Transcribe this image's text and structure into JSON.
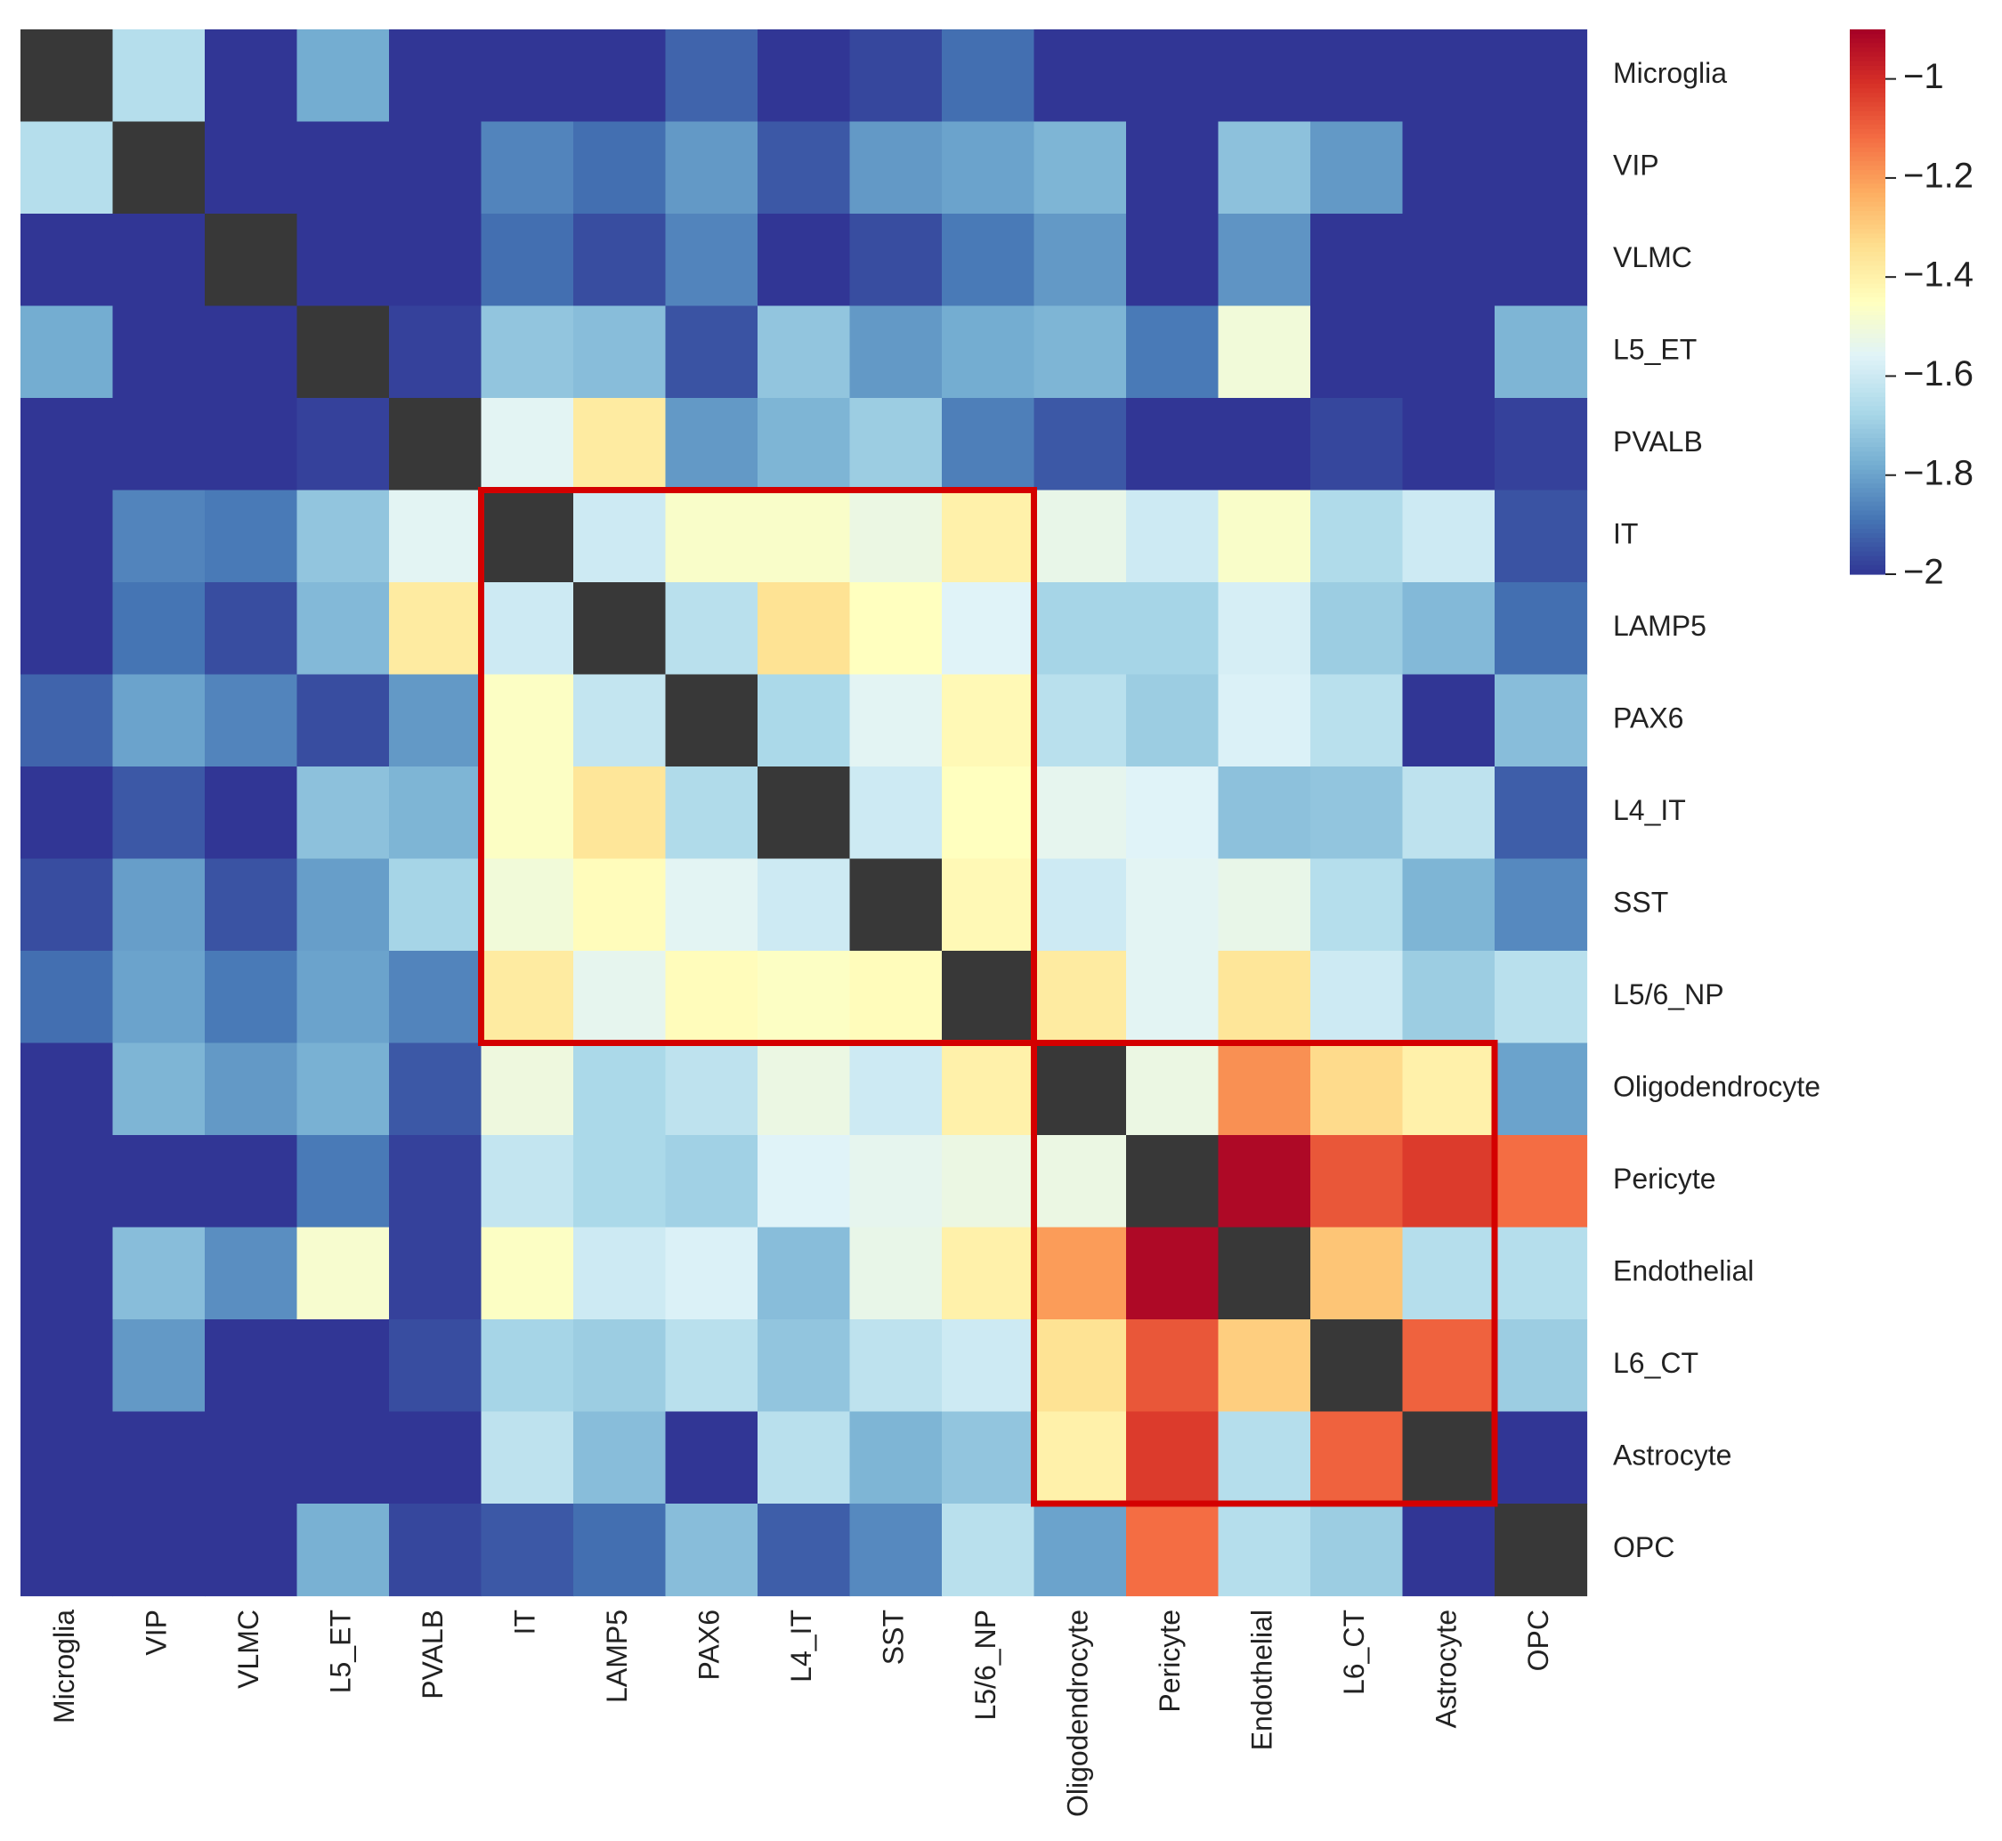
{
  "chart_data": {
    "type": "heatmap",
    "title": "",
    "xlabel": "",
    "ylabel": "",
    "rows": [
      "Microglia",
      "VIP",
      "VLMC",
      "L5_ET",
      "PVALB",
      "IT",
      "LAMP5",
      "PAX6",
      "L4_IT",
      "SST",
      "L5/6_NP",
      "Oligodendrocyte",
      "Pericyte",
      "Endothelial",
      "L6_CT",
      "Astrocyte",
      "OPC"
    ],
    "columns": [
      "Microglia",
      "VIP",
      "VLMC",
      "L5_ET",
      "PVALB",
      "IT",
      "LAMP5",
      "PAX6",
      "L4_IT",
      "SST",
      "L5/6_NP",
      "Oligodendrocyte",
      "Pericyte",
      "Endothelial",
      "L6_CT",
      "Astrocyte",
      "OPC"
    ],
    "values": [
      [
        null,
        -1.65,
        -2,
        -1.78,
        -2,
        -2,
        -2,
        -1.92,
        -2,
        -1.97,
        -1.9,
        -2,
        -2,
        -2,
        -2,
        -2,
        -2
      ],
      [
        -1.65,
        null,
        -2,
        -2,
        -2,
        -1.86,
        -1.9,
        -1.82,
        -1.94,
        -1.82,
        -1.8,
        -1.76,
        -2,
        -1.73,
        -1.82,
        -2,
        -2
      ],
      [
        -2,
        -2,
        null,
        -2,
        -2,
        -1.9,
        -1.96,
        -1.86,
        -2,
        -1.96,
        -1.88,
        -1.82,
        -2,
        -1.83,
        -2,
        -2,
        -2
      ],
      [
        -1.78,
        -2,
        -2,
        null,
        -1.98,
        -1.72,
        -1.74,
        -1.95,
        -1.72,
        -1.82,
        -1.78,
        -1.76,
        -1.88,
        -1.5,
        -2,
        -2,
        -1.76
      ],
      [
        -2,
        -2,
        -2,
        -1.98,
        null,
        -1.55,
        -1.38,
        -1.82,
        -1.76,
        -1.7,
        -1.87,
        -1.94,
        -2,
        -2,
        -1.97,
        -2,
        -1.98
      ],
      [
        -2,
        -1.86,
        -1.88,
        -1.72,
        -1.55,
        null,
        -1.6,
        -1.47,
        -1.47,
        -1.52,
        -1.4,
        -1.53,
        -1.6,
        -1.47,
        -1.66,
        -1.6,
        -1.95
      ],
      [
        -2,
        -1.89,
        -1.96,
        -1.75,
        -1.38,
        -1.6,
        null,
        -1.64,
        -1.35,
        -1.45,
        -1.56,
        -1.68,
        -1.68,
        -1.58,
        -1.7,
        -1.75,
        -1.9
      ],
      [
        -1.92,
        -1.8,
        -1.86,
        -1.96,
        -1.82,
        -1.46,
        -1.62,
        null,
        -1.67,
        -1.55,
        -1.43,
        -1.64,
        -1.7,
        -1.57,
        -1.64,
        -2,
        -1.74
      ],
      [
        -2,
        -1.94,
        -2,
        -1.73,
        -1.76,
        -1.46,
        -1.36,
        -1.66,
        null,
        -1.6,
        -1.45,
        -1.54,
        -1.56,
        -1.73,
        -1.72,
        -1.63,
        -1.93
      ],
      [
        -1.96,
        -1.81,
        -1.95,
        -1.81,
        -1.68,
        -1.5,
        -1.44,
        -1.55,
        -1.6,
        null,
        -1.43,
        -1.6,
        -1.55,
        -1.53,
        -1.65,
        -1.76,
        -1.85
      ],
      [
        -1.9,
        -1.8,
        -1.88,
        -1.8,
        -1.86,
        -1.38,
        -1.54,
        -1.44,
        -1.46,
        -1.44,
        null,
        -1.38,
        -1.55,
        -1.36,
        -1.6,
        -1.7,
        -1.64
      ],
      [
        -2,
        -1.76,
        -1.82,
        -1.77,
        -1.94,
        -1.51,
        -1.67,
        -1.63,
        -1.52,
        -1.6,
        -1.4,
        null,
        -1.52,
        -1.18,
        -1.33,
        -1.4,
        -1.8
      ],
      [
        -2,
        -2,
        -2,
        -1.88,
        -1.98,
        -1.62,
        -1.67,
        -1.69,
        -1.56,
        -1.54,
        -1.52,
        -1.52,
        null,
        -0.92,
        -1.08,
        -1.03,
        -1.12
      ],
      [
        -2,
        -1.74,
        -1.84,
        -1.48,
        -1.98,
        -1.46,
        -1.6,
        -1.57,
        -1.74,
        -1.53,
        -1.4,
        -1.2,
        -0.92,
        null,
        -1.28,
        -1.65,
        -1.65
      ],
      [
        -2,
        -1.82,
        -2,
        -2,
        -1.96,
        -1.68,
        -1.7,
        -1.64,
        -1.72,
        -1.63,
        -1.6,
        -1.35,
        -1.08,
        -1.3,
        null,
        -1.1,
        -1.7
      ],
      [
        -2,
        -2,
        -2,
        -2,
        -2,
        -1.63,
        -1.74,
        -2,
        -1.64,
        -1.76,
        -1.72,
        -1.4,
        -1.03,
        -1.65,
        -1.1,
        null,
        -2
      ],
      [
        -2,
        -2,
        -2,
        -1.77,
        -1.97,
        -1.94,
        -1.9,
        -1.74,
        -1.93,
        -1.85,
        -1.64,
        -1.8,
        -1.12,
        -1.65,
        -1.7,
        -2,
        null
      ]
    ],
    "diagonal_color": "#383838",
    "colorbar": {
      "min": -2,
      "max": -0.9,
      "ticks": [
        -1,
        -1.2,
        -1.4,
        -1.6,
        -1.8,
        -2
      ],
      "tick_labels": [
        "−1",
        "−1.2",
        "−1.4",
        "−1.6",
        "−1.8",
        "−2"
      ],
      "colormap": "RdYlBu_r"
    },
    "highlight_boxes": [
      {
        "rows": [
          "IT",
          "L5/6_NP"
        ],
        "columns": [
          "IT",
          "L5/6_NP"
        ],
        "color": "#d40000"
      },
      {
        "rows": [
          "Oligodendrocyte",
          "Astrocyte"
        ],
        "columns": [
          "Oligodendrocyte",
          "Astrocyte"
        ],
        "color": "#d40000"
      }
    ],
    "grid": false
  }
}
